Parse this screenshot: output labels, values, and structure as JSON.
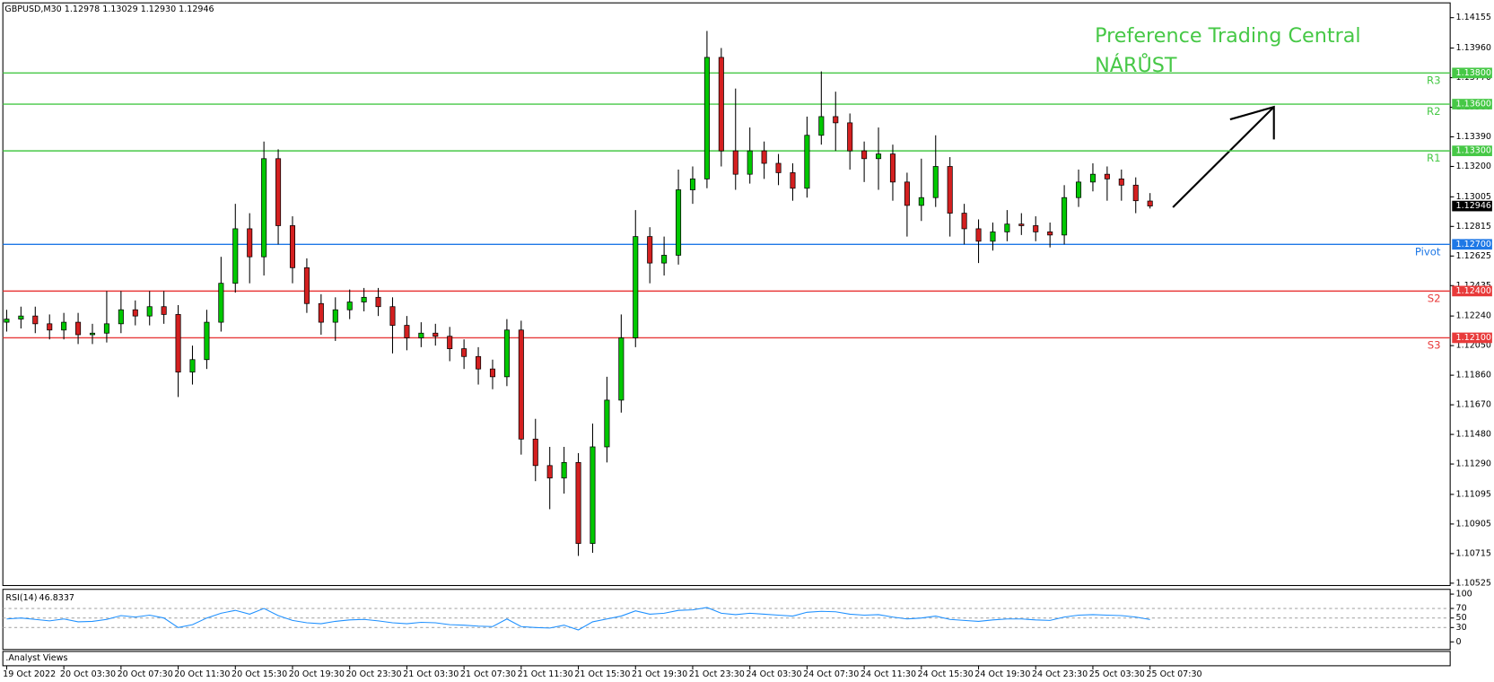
{
  "chart_data": [
    {
      "type": "candlestick",
      "info": "GBPUSD,M30  1.12978 1.13029 1.12930 1.12946",
      "annotation": [
        "Preference Trading Central",
        "NÁRŮST"
      ],
      "categories": [
        "19 Oct 2022",
        null,
        null,
        null,
        "20 Oct 03:30",
        null,
        null,
        null,
        "20 Oct 07:30",
        null,
        null,
        null,
        "20 Oct 11:30",
        null,
        null,
        null,
        "20 Oct 15:30",
        null,
        null,
        null,
        "20 Oct 19:30",
        null,
        null,
        null,
        "20 Oct 23:30",
        null,
        null,
        null,
        "21 Oct 03:30",
        null,
        null,
        null,
        "21 Oct 07:30",
        null,
        null,
        null,
        "21 Oct 11:30",
        null,
        null,
        null,
        "21 Oct 15:30",
        null,
        null,
        null,
        "21 Oct 19:30",
        null,
        null,
        null,
        "21 Oct 23:30",
        null,
        null,
        null,
        "24 Oct 03:30",
        null,
        null,
        null,
        "24 Oct 07:30",
        null,
        null,
        null,
        "24 Oct 11:30",
        null,
        null,
        null,
        "24 Oct 15:30",
        null,
        null,
        null,
        "24 Oct 19:30",
        null,
        null,
        null,
        "24 Oct 23:30",
        null,
        null,
        null,
        "25 Oct 03:30",
        null,
        null,
        null,
        "25 Oct 07:30"
      ],
      "open": [
        1.122,
        1.1222,
        1.1224,
        1.1219,
        1.1215,
        1.122,
        1.1212,
        1.1213,
        1.1219,
        1.1228,
        1.1224,
        1.123,
        1.1225,
        1.1188,
        1.1196,
        1.122,
        1.1245,
        1.128,
        1.1262,
        1.1325,
        1.1282,
        1.1255,
        1.1232,
        1.122,
        1.1228,
        1.1233,
        1.1236,
        1.123,
        1.1218,
        1.121,
        1.1213,
        1.1211,
        1.1203,
        1.1198,
        1.119,
        1.1185,
        1.1215,
        1.1145,
        1.1128,
        1.112,
        1.113,
        1.1078,
        1.114,
        1.117,
        1.121,
        1.1275,
        1.1258,
        1.1263,
        1.1305,
        1.1312,
        1.139,
        1.133,
        1.1315,
        1.133,
        1.1322,
        1.1316,
        1.1306,
        1.134,
        1.1352,
        1.1348,
        1.133,
        1.1325,
        1.1328,
        1.131,
        1.1295,
        1.13,
        1.132,
        1.129,
        1.128,
        1.1272,
        1.1278,
        1.1283,
        1.1282,
        1.1278,
        1.1276,
        1.13,
        1.131,
        1.1315,
        1.1312,
        1.1308,
        1.12978
      ],
      "high": [
        1.1228,
        1.123,
        1.123,
        1.1225,
        1.1226,
        1.1226,
        1.1219,
        1.124,
        1.124,
        1.1234,
        1.124,
        1.124,
        1.1231,
        1.1205,
        1.1228,
        1.1262,
        1.1296,
        1.129,
        1.1336,
        1.1331,
        1.1288,
        1.1261,
        1.1238,
        1.1236,
        1.1241,
        1.1242,
        1.1242,
        1.1236,
        1.1224,
        1.122,
        1.1219,
        1.1217,
        1.1209,
        1.1204,
        1.1196,
        1.1222,
        1.1221,
        1.1158,
        1.114,
        1.114,
        1.1136,
        1.1155,
        1.1185,
        1.1225,
        1.1292,
        1.1281,
        1.1275,
        1.1318,
        1.132,
        1.1407,
        1.1396,
        1.137,
        1.1345,
        1.1336,
        1.1328,
        1.1322,
        1.1352,
        1.1381,
        1.1368,
        1.1354,
        1.1336,
        1.1345,
        1.1334,
        1.1316,
        1.1325,
        1.134,
        1.1326,
        1.1296,
        1.1286,
        1.1284,
        1.1292,
        1.129,
        1.1288,
        1.1284,
        1.1308,
        1.1318,
        1.1322,
        1.132,
        1.1318,
        1.1313,
        1.13029
      ],
      "low": [
        1.1214,
        1.1216,
        1.1213,
        1.1209,
        1.1209,
        1.1206,
        1.1206,
        1.1207,
        1.1213,
        1.1218,
        1.1218,
        1.1219,
        1.1172,
        1.118,
        1.119,
        1.1214,
        1.1239,
        1.1245,
        1.125,
        1.127,
        1.1245,
        1.1226,
        1.1212,
        1.1208,
        1.1222,
        1.1227,
        1.1224,
        1.12,
        1.1202,
        1.1204,
        1.1205,
        1.1195,
        1.119,
        1.118,
        1.1177,
        1.1179,
        1.1135,
        1.1118,
        1.11,
        1.111,
        1.107,
        1.1072,
        1.113,
        1.1162,
        1.1204,
        1.1245,
        1.125,
        1.1257,
        1.1296,
        1.1306,
        1.132,
        1.1305,
        1.1309,
        1.1312,
        1.1308,
        1.1298,
        1.13,
        1.1334,
        1.133,
        1.1318,
        1.131,
        1.1305,
        1.1298,
        1.1275,
        1.1285,
        1.1294,
        1.1275,
        1.127,
        1.1258,
        1.1266,
        1.1272,
        1.1276,
        1.1272,
        1.1268,
        1.127,
        1.1294,
        1.1304,
        1.1298,
        1.1298,
        1.129,
        1.1293
      ],
      "close": [
        1.1222,
        1.1224,
        1.1219,
        1.1215,
        1.122,
        1.1212,
        1.1213,
        1.1219,
        1.1228,
        1.1224,
        1.123,
        1.1225,
        1.1188,
        1.1196,
        1.122,
        1.1245,
        1.128,
        1.1262,
        1.1325,
        1.1282,
        1.1255,
        1.1232,
        1.122,
        1.1228,
        1.1233,
        1.1236,
        1.123,
        1.1218,
        1.121,
        1.1213,
        1.1211,
        1.1203,
        1.1198,
        1.119,
        1.1185,
        1.1215,
        1.1145,
        1.1128,
        1.112,
        1.113,
        1.1078,
        1.114,
        1.117,
        1.121,
        1.1275,
        1.1258,
        1.1263,
        1.1305,
        1.1312,
        1.139,
        1.133,
        1.1315,
        1.133,
        1.1322,
        1.1316,
        1.1306,
        1.134,
        1.1352,
        1.1348,
        1.133,
        1.1325,
        1.1328,
        1.131,
        1.1295,
        1.13,
        1.132,
        1.129,
        1.128,
        1.1272,
        1.1278,
        1.1283,
        1.1282,
        1.1278,
        1.1276,
        1.13,
        1.131,
        1.1315,
        1.1312,
        1.1308,
        1.1298,
        1.12946
      ],
      "up_color": "#00c800",
      "down_color": "#d42020",
      "ylim": [
        1.1051,
        1.1425
      ],
      "yticks": [
        {
          "value": 1.14155,
          "label": "1.14155"
        },
        {
          "value": 1.1396,
          "label": "1.13960"
        },
        {
          "value": 1.1377,
          "label": "1.13770"
        },
        {
          "value": 1.1358,
          "label": "1.13580"
        },
        {
          "value": 1.1339,
          "label": "1.13390"
        },
        {
          "value": 1.132,
          "label": "1.13200"
        },
        {
          "value": 1.13005,
          "label": "1.13005"
        },
        {
          "value": 1.12815,
          "label": "1.12815"
        },
        {
          "value": 1.12625,
          "label": "1.12625"
        },
        {
          "value": 1.12435,
          "label": "1.12435"
        },
        {
          "value": 1.1224,
          "label": "1.12240"
        },
        {
          "value": 1.1205,
          "label": "1.12050"
        },
        {
          "value": 1.1186,
          "label": "1.11860"
        },
        {
          "value": 1.1167,
          "label": "1.11670"
        },
        {
          "value": 1.1148,
          "label": "1.11480"
        },
        {
          "value": 1.1129,
          "label": "1.11290"
        },
        {
          "value": 1.11095,
          "label": "1.11095"
        },
        {
          "value": 1.10905,
          "label": "1.10905"
        },
        {
          "value": 1.10715,
          "label": "1.10715"
        },
        {
          "value": 1.10525,
          "label": "1.10525"
        }
      ],
      "levels": [
        {
          "name": "R3",
          "price": {
            "value": 1.138,
            "label": "1.13800"
          },
          "color": "#46c846"
        },
        {
          "name": "R2",
          "price": {
            "value": 1.136,
            "label": "1.13600"
          },
          "color": "#46c846"
        },
        {
          "name": "R1",
          "price": {
            "value": 1.133,
            "label": "1.13300"
          },
          "color": "#46c846"
        },
        {
          "name": "Pivot",
          "price": {
            "value": 1.127,
            "label": "1.12700"
          },
          "color": "#1e78e6"
        },
        {
          "name": "S2",
          "price": {
            "value": 1.124,
            "label": "1.12400"
          },
          "color": "#e83a3a"
        },
        {
          "name": "S3",
          "price": {
            "value": 1.121,
            "label": "1.12100"
          },
          "color": "#e83a3a"
        }
      ]
    },
    {
      "type": "line",
      "title": "RSI(14)",
      "values": [
        48,
        50,
        47,
        44,
        48,
        42,
        43,
        47,
        55,
        52,
        56,
        50,
        30,
        36,
        50,
        60,
        66,
        58,
        70,
        55,
        45,
        40,
        38,
        43,
        46,
        47,
        44,
        40,
        38,
        41,
        40,
        36,
        35,
        33,
        32,
        48,
        32,
        30,
        29,
        35,
        25,
        42,
        48,
        54,
        65,
        58,
        60,
        66,
        67,
        72,
        60,
        57,
        60,
        58,
        56,
        54,
        62,
        64,
        63,
        58,
        56,
        57,
        52,
        48,
        50,
        54,
        47,
        45,
        43,
        46,
        48,
        48,
        46,
        45,
        52,
        56,
        57,
        56,
        55,
        52,
        46.8337
      ],
      "color": "#1e90ff",
      "ylim": [
        0,
        100
      ],
      "yticks": [
        100,
        70,
        50,
        30,
        0
      ]
    }
  ],
  "footer": ".Analyst Views"
}
